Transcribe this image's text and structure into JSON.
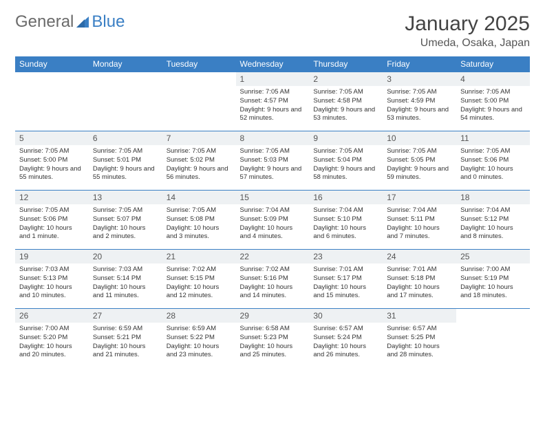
{
  "brand": {
    "part1": "General",
    "part2": "Blue",
    "text_color": "#6a6a6a",
    "accent_color": "#3a7fc4"
  },
  "title": "January 2025",
  "location": "Umeda, Osaka, Japan",
  "colors": {
    "header_bg": "#3a7fc4",
    "header_fg": "#ffffff",
    "daynum_bg": "#eef1f3",
    "row_border": "#3a7fc4",
    "page_bg": "#ffffff"
  },
  "weekdays": [
    "Sunday",
    "Monday",
    "Tuesday",
    "Wednesday",
    "Thursday",
    "Friday",
    "Saturday"
  ],
  "weeks": [
    [
      null,
      null,
      null,
      {
        "n": "1",
        "sr": "7:05 AM",
        "ss": "4:57 PM",
        "dl": "9 hours and 52 minutes."
      },
      {
        "n": "2",
        "sr": "7:05 AM",
        "ss": "4:58 PM",
        "dl": "9 hours and 53 minutes."
      },
      {
        "n": "3",
        "sr": "7:05 AM",
        "ss": "4:59 PM",
        "dl": "9 hours and 53 minutes."
      },
      {
        "n": "4",
        "sr": "7:05 AM",
        "ss": "5:00 PM",
        "dl": "9 hours and 54 minutes."
      }
    ],
    [
      {
        "n": "5",
        "sr": "7:05 AM",
        "ss": "5:00 PM",
        "dl": "9 hours and 55 minutes."
      },
      {
        "n": "6",
        "sr": "7:05 AM",
        "ss": "5:01 PM",
        "dl": "9 hours and 55 minutes."
      },
      {
        "n": "7",
        "sr": "7:05 AM",
        "ss": "5:02 PM",
        "dl": "9 hours and 56 minutes."
      },
      {
        "n": "8",
        "sr": "7:05 AM",
        "ss": "5:03 PM",
        "dl": "9 hours and 57 minutes."
      },
      {
        "n": "9",
        "sr": "7:05 AM",
        "ss": "5:04 PM",
        "dl": "9 hours and 58 minutes."
      },
      {
        "n": "10",
        "sr": "7:05 AM",
        "ss": "5:05 PM",
        "dl": "9 hours and 59 minutes."
      },
      {
        "n": "11",
        "sr": "7:05 AM",
        "ss": "5:06 PM",
        "dl": "10 hours and 0 minutes."
      }
    ],
    [
      {
        "n": "12",
        "sr": "7:05 AM",
        "ss": "5:06 PM",
        "dl": "10 hours and 1 minute."
      },
      {
        "n": "13",
        "sr": "7:05 AM",
        "ss": "5:07 PM",
        "dl": "10 hours and 2 minutes."
      },
      {
        "n": "14",
        "sr": "7:05 AM",
        "ss": "5:08 PM",
        "dl": "10 hours and 3 minutes."
      },
      {
        "n": "15",
        "sr": "7:04 AM",
        "ss": "5:09 PM",
        "dl": "10 hours and 4 minutes."
      },
      {
        "n": "16",
        "sr": "7:04 AM",
        "ss": "5:10 PM",
        "dl": "10 hours and 6 minutes."
      },
      {
        "n": "17",
        "sr": "7:04 AM",
        "ss": "5:11 PM",
        "dl": "10 hours and 7 minutes."
      },
      {
        "n": "18",
        "sr": "7:04 AM",
        "ss": "5:12 PM",
        "dl": "10 hours and 8 minutes."
      }
    ],
    [
      {
        "n": "19",
        "sr": "7:03 AM",
        "ss": "5:13 PM",
        "dl": "10 hours and 10 minutes."
      },
      {
        "n": "20",
        "sr": "7:03 AM",
        "ss": "5:14 PM",
        "dl": "10 hours and 11 minutes."
      },
      {
        "n": "21",
        "sr": "7:02 AM",
        "ss": "5:15 PM",
        "dl": "10 hours and 12 minutes."
      },
      {
        "n": "22",
        "sr": "7:02 AM",
        "ss": "5:16 PM",
        "dl": "10 hours and 14 minutes."
      },
      {
        "n": "23",
        "sr": "7:01 AM",
        "ss": "5:17 PM",
        "dl": "10 hours and 15 minutes."
      },
      {
        "n": "24",
        "sr": "7:01 AM",
        "ss": "5:18 PM",
        "dl": "10 hours and 17 minutes."
      },
      {
        "n": "25",
        "sr": "7:00 AM",
        "ss": "5:19 PM",
        "dl": "10 hours and 18 minutes."
      }
    ],
    [
      {
        "n": "26",
        "sr": "7:00 AM",
        "ss": "5:20 PM",
        "dl": "10 hours and 20 minutes."
      },
      {
        "n": "27",
        "sr": "6:59 AM",
        "ss": "5:21 PM",
        "dl": "10 hours and 21 minutes."
      },
      {
        "n": "28",
        "sr": "6:59 AM",
        "ss": "5:22 PM",
        "dl": "10 hours and 23 minutes."
      },
      {
        "n": "29",
        "sr": "6:58 AM",
        "ss": "5:23 PM",
        "dl": "10 hours and 25 minutes."
      },
      {
        "n": "30",
        "sr": "6:57 AM",
        "ss": "5:24 PM",
        "dl": "10 hours and 26 minutes."
      },
      {
        "n": "31",
        "sr": "6:57 AM",
        "ss": "5:25 PM",
        "dl": "10 hours and 28 minutes."
      },
      null
    ]
  ],
  "labels": {
    "sunrise": "Sunrise:",
    "sunset": "Sunset:",
    "daylight": "Daylight:"
  }
}
